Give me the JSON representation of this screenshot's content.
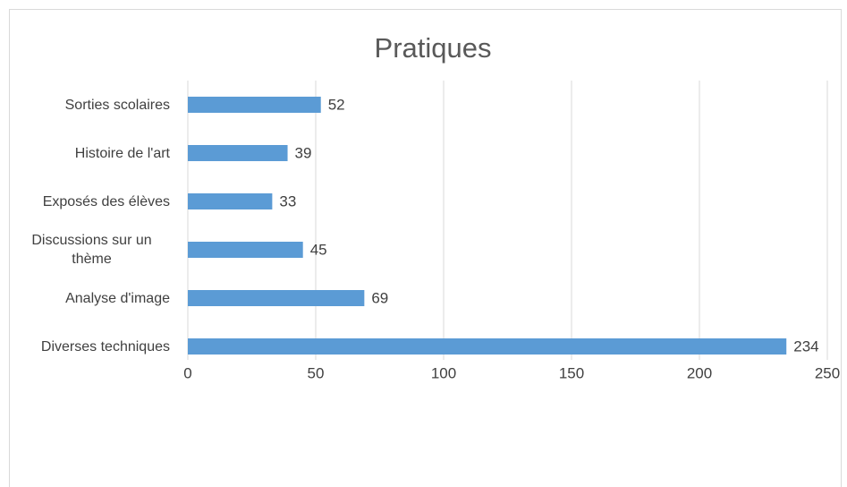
{
  "chart_data": {
    "type": "bar",
    "orientation": "horizontal",
    "title": "Pratiques",
    "categories": [
      "Sorties scolaires",
      "Histoire de l'art",
      "Exposés des élèves",
      "Discussions sur un thème",
      "Analyse d'image",
      "Diverses techniques"
    ],
    "values": [
      52,
      39,
      33,
      45,
      69,
      234
    ],
    "color": "#5b9bd5",
    "xlim": [
      0,
      250
    ],
    "xticks": [
      0,
      50,
      100,
      150,
      200,
      250
    ],
    "grid": true
  }
}
